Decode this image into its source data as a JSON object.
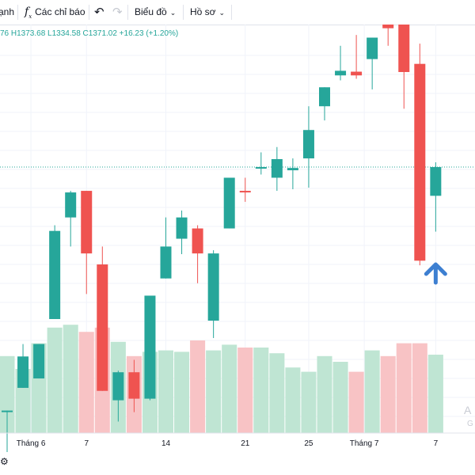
{
  "toolbar": {
    "partial_label": "ạnh",
    "indicators_label": "Các chỉ báo",
    "indicators_icon": "fx-icon",
    "undo_icon": "undo-icon",
    "redo_icon": "redo-icon",
    "chart_menu_label": "Biểu đồ",
    "profile_menu_label": "Hồ sơ"
  },
  "legend": {
    "ohlc_text": "76 H1373.68 L1334.58 C1371.02 +16.23 (+1.20%)"
  },
  "watermark": {
    "line1": "A",
    "line2": "G"
  },
  "colors": {
    "up": "#26a69a",
    "down": "#ef5350",
    "up_volume": "#bfe5d3",
    "down_volume": "#f8c3c5",
    "arrow": "#3d7fd1",
    "grid": "#f0f3fa"
  },
  "chart_data": {
    "type": "candlestick",
    "candles": [
      {
        "o": 1233.7,
        "h": 1233.7,
        "l": 1198.4,
        "c": 1233.7,
        "v": 0.54
      },
      {
        "o": 1246.5,
        "h": 1271.2,
        "l": 1246.5,
        "c": 1264.2,
        "v": 0.45
      },
      {
        "o": 1251.8,
        "h": 1271.2,
        "l": 1251.8,
        "c": 1271.2,
        "v": 0.63
      },
      {
        "o": 1285.3,
        "h": 1338.2,
        "l": 1285.3,
        "c": 1335.0,
        "v": 0.74
      },
      {
        "o": 1342.6,
        "h": 1357.6,
        "l": 1326.2,
        "c": 1356.7,
        "v": 0.76
      },
      {
        "o": 1357.6,
        "h": 1357.6,
        "l": 1299.4,
        "c": 1322.3,
        "v": 0.71
      },
      {
        "o": 1316.1,
        "h": 1326.2,
        "l": 1244.8,
        "c": 1244.8,
        "v": 0.74
      },
      {
        "o": 1239.5,
        "h": 1256.2,
        "l": 1227.5,
        "c": 1255.3,
        "v": 0.64
      },
      {
        "o": 1255.3,
        "h": 1262.3,
        "l": 1232.8,
        "c": 1240.4,
        "v": 0.54
      },
      {
        "o": 1240.4,
        "h": 1298.5,
        "l": 1239.5,
        "c": 1298.5,
        "v": 0.57
      },
      {
        "o": 1308.2,
        "h": 1342.6,
        "l": 1308.2,
        "c": 1326.2,
        "v": 0.58
      },
      {
        "o": 1330.6,
        "h": 1346.5,
        "l": 1321.9,
        "c": 1342.6,
        "v": 0.57
      },
      {
        "o": 1336.4,
        "h": 1338.2,
        "l": 1305.5,
        "c": 1322.3,
        "v": 0.65
      },
      {
        "o": 1284.4,
        "h": 1324.1,
        "l": 1274.6,
        "c": 1322.3,
        "v": 0.58
      },
      {
        "o": 1336.4,
        "h": 1365.0,
        "l": 1336.4,
        "c": 1365.0,
        "v": 0.62
      },
      {
        "o": 1357.6,
        "h": 1365.0,
        "l": 1351.4,
        "c": 1356.7,
        "v": 0.6
      },
      {
        "o": 1371.0,
        "h": 1379.3,
        "l": 1366.8,
        "c": 1371.0,
        "v": 0.6
      },
      {
        "o": 1365.0,
        "h": 1382.3,
        "l": 1357.6,
        "c": 1375.5,
        "v": 0.56
      },
      {
        "o": 1369.2,
        "h": 1375.9,
        "l": 1358.5,
        "c": 1370.5,
        "v": 0.46
      },
      {
        "o": 1375.9,
        "h": 1405.3,
        "l": 1359.4,
        "c": 1391.9,
        "v": 0.43
      },
      {
        "o": 1405.3,
        "h": 1416.0,
        "l": 1397.3,
        "c": 1416.0,
        "v": 0.54
      },
      {
        "o": 1422.7,
        "h": 1439.4,
        "l": 1419.9,
        "c": 1425.3,
        "v": 0.5
      },
      {
        "o": 1424.8,
        "h": 1445.5,
        "l": 1420.8,
        "c": 1422.7,
        "v": 0.43
      },
      {
        "o": 1431.9,
        "h": 1444.0,
        "l": 1414.8,
        "c": 1444.0,
        "v": 0.58
      },
      {
        "o": 1458.7,
        "h": 1464.7,
        "l": 1439.4,
        "c": 1449.3,
        "v": 0.54
      },
      {
        "o": 1454.2,
        "h": 1454.2,
        "l": 1403.9,
        "c": 1424.6,
        "v": 0.63
      },
      {
        "o": 1429.2,
        "h": 1440.6,
        "l": 1315.6,
        "c": 1318.2,
        "v": 0.63
      },
      {
        "o": 1354.8,
        "h": 1373.7,
        "l": 1334.6,
        "c": 1371.0,
        "v": 0.55
      }
    ],
    "x_ticks": [
      {
        "label": "Tháng 6",
        "index": 1.5
      },
      {
        "label": "7",
        "index": 5
      },
      {
        "label": "14",
        "index": 10
      },
      {
        "label": "21",
        "index": 15
      },
      {
        "label": "25",
        "index": 19
      },
      {
        "label": "Tháng 7",
        "index": 22.5
      },
      {
        "label": "7",
        "index": 27
      }
    ],
    "current_price": 1371.02
  }
}
